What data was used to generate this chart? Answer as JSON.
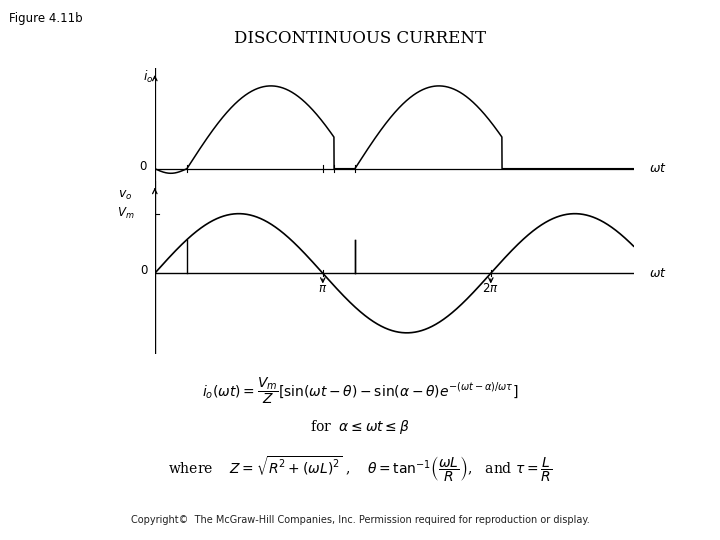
{
  "title": "DISCONTINUOUS CURRENT",
  "fig_label": "Figure 4.11b",
  "background_color": "#ffffff",
  "line_color": "#000000",
  "alpha_val": 0.6,
  "beta_val": 3.35,
  "x_max_factor": 2.85,
  "copyright": "Copyright©  The McGraw-Hill Companies, Inc. Permission required for reproduction or display."
}
